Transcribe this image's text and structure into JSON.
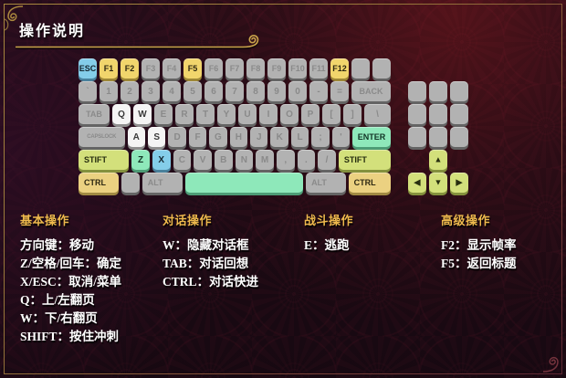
{
  "page": {
    "title": "操作说明"
  },
  "colors": {
    "background": "#1e0c16",
    "frame_gold": "#a9883e",
    "frame_dark_red": "#5d2733",
    "heading_gold": "#eeb94d",
    "text_white": "#ffffff",
    "key_gray": "#b2b2b2",
    "key_blue": "#84cde9",
    "key_yellow": "#f1d56c",
    "key_white": "#f4f4f4",
    "key_green": "#8ee8ba",
    "key_olive": "#d3e07b",
    "key_tan": "#ebd181"
  },
  "keyboard": {
    "rows": [
      [
        {
          "label": "ESC",
          "c": "blue",
          "cls": "fn"
        },
        {
          "label": "F1",
          "c": "yellow",
          "cls": "fn"
        },
        {
          "label": "F2",
          "c": "yellow",
          "cls": "fn"
        },
        {
          "label": "F3",
          "cls": "fn"
        },
        {
          "label": "F4",
          "cls": "fn"
        },
        {
          "label": "F5",
          "c": "yellow",
          "cls": "fn"
        },
        {
          "label": "F6",
          "cls": "fn"
        },
        {
          "label": "F7",
          "cls": "fn"
        },
        {
          "label": "F8",
          "cls": "fn"
        },
        {
          "label": "F9",
          "cls": "fn"
        },
        {
          "label": "F10",
          "cls": "fn"
        },
        {
          "label": "F11",
          "cls": "fn"
        },
        {
          "label": "F12",
          "c": "yellow",
          "cls": "fn"
        },
        {
          "label": ""
        },
        {
          "label": ""
        }
      ],
      [
        {
          "label": "`"
        },
        {
          "label": "1"
        },
        {
          "label": "2"
        },
        {
          "label": "3"
        },
        {
          "label": "4"
        },
        {
          "label": "5"
        },
        {
          "label": "6"
        },
        {
          "label": "7"
        },
        {
          "label": "8"
        },
        {
          "label": "9"
        },
        {
          "label": "0"
        },
        {
          "label": "-"
        },
        {
          "label": "="
        },
        {
          "label": "BACK",
          "u": 2.15,
          "cls": "med"
        }
      ],
      [
        {
          "label": "TAB",
          "u": 1.7,
          "cls": "med"
        },
        {
          "label": "Q",
          "c": "white"
        },
        {
          "label": "W",
          "c": "white"
        },
        {
          "label": "E"
        },
        {
          "label": "R"
        },
        {
          "label": "T"
        },
        {
          "label": "Y"
        },
        {
          "label": "U"
        },
        {
          "label": "I"
        },
        {
          "label": "O"
        },
        {
          "label": "P"
        },
        {
          "label": "["
        },
        {
          "label": "]"
        },
        {
          "label": "\\",
          "u": 1.45
        }
      ],
      [
        {
          "label": "CAPSLOCK",
          "u": 2.6,
          "cls": "tiny"
        },
        {
          "label": "A",
          "c": "white"
        },
        {
          "label": "S",
          "c": "white"
        },
        {
          "label": "D"
        },
        {
          "label": "F"
        },
        {
          "label": "G"
        },
        {
          "label": "H"
        },
        {
          "label": "J"
        },
        {
          "label": "K"
        },
        {
          "label": "L"
        },
        {
          "label": ";"
        },
        {
          "label": "'"
        },
        {
          "label": "ENTER",
          "c": "green",
          "u": 2.15,
          "cls": "med"
        }
      ],
      [
        {
          "label": "STIFT",
          "c": "olive",
          "u": 2.5,
          "cls": "med",
          "align": "left"
        },
        {
          "label": "Z",
          "c": "green"
        },
        {
          "label": "X",
          "c": "blue"
        },
        {
          "label": "C"
        },
        {
          "label": "V"
        },
        {
          "label": "B"
        },
        {
          "label": "N"
        },
        {
          "label": "M"
        },
        {
          "label": ","
        },
        {
          "label": "."
        },
        {
          "label": "/"
        },
        {
          "label": "STIFT",
          "c": "olive",
          "u": 2.6,
          "cls": "med",
          "align": "left"
        }
      ],
      [
        {
          "label": "CTRL",
          "c": "tan",
          "u": 2.0,
          "cls": "med",
          "align": "left"
        },
        {
          "label": "",
          "u": 1.0
        },
        {
          "label": "ALT",
          "u": 2.0,
          "cls": "med",
          "align": "left"
        },
        {
          "label": "",
          "c": "green",
          "u": 6.7
        },
        {
          "label": "ALT",
          "u": 1.95,
          "cls": "med",
          "align": "left"
        },
        {
          "label": "CTRL",
          "c": "tan",
          "u": 2.1,
          "cls": "med",
          "align": "left"
        }
      ]
    ],
    "side_grid_blank_keys": 9,
    "arrows": [
      {
        "name": "up",
        "glyph": "▲"
      },
      {
        "name": "left",
        "glyph": "◀"
      },
      {
        "name": "down",
        "glyph": "▼"
      },
      {
        "name": "right",
        "glyph": "▶"
      }
    ]
  },
  "sections": [
    {
      "title": "基本操作",
      "lines": [
        "方向键：移动",
        "Z/空格/回车：确定",
        "X/ESC：取消/菜单",
        "Q：上/左翻页",
        "W：下/右翻页",
        "SHIFT：按住冲刺"
      ]
    },
    {
      "title": "对话操作",
      "lines": [
        "W：隐藏对话框",
        "TAB：对话回想",
        "CTRL：对话快进"
      ]
    },
    {
      "title": "战斗操作",
      "lines": [
        "E：逃跑"
      ]
    },
    {
      "title": "高级操作",
      "lines": [
        "F2：显示帧率",
        "F5：返回标题"
      ]
    }
  ]
}
